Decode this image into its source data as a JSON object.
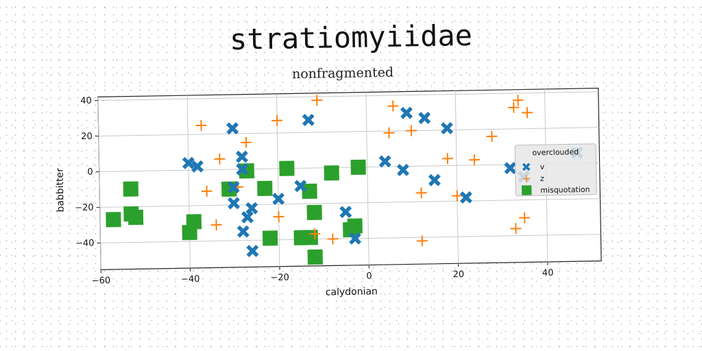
{
  "title": "stratiomyiidae",
  "subtitle": "nonfragmented",
  "chart_data": {
    "type": "scatter",
    "xlabel": "calydonian",
    "ylabel": "babbitter",
    "xlim": [
      -60,
      52
    ],
    "ylim": [
      -55,
      42
    ],
    "xticks": [
      -60,
      -40,
      -20,
      0,
      20,
      40
    ],
    "yticks": [
      -40,
      -20,
      0,
      20,
      40
    ],
    "grid": true,
    "legend": {
      "title": "overclouded",
      "position": "right"
    },
    "series": [
      {
        "name": "v",
        "marker": "x",
        "color": "#1f77b4",
        "points": [
          [
            -40,
            4
          ],
          [
            -38,
            2
          ],
          [
            -30,
            23
          ],
          [
            -28,
            7
          ],
          [
            -28,
            0
          ],
          [
            -30,
            -10
          ],
          [
            -30,
            -19
          ],
          [
            -28,
            -35
          ],
          [
            -26,
            -22
          ],
          [
            -27,
            -27
          ],
          [
            -26,
            -46
          ],
          [
            -20,
            -17
          ],
          [
            -15,
            -10
          ],
          [
            -13,
            27
          ],
          [
            -5,
            -25
          ],
          [
            -3,
            -40
          ],
          [
            4,
            3
          ],
          [
            8,
            -2
          ],
          [
            9,
            30
          ],
          [
            13,
            27
          ],
          [
            15,
            -8
          ],
          [
            18,
            21
          ],
          [
            22,
            -18
          ],
          [
            32,
            -2
          ],
          [
            35,
            -7
          ],
          [
            47,
            6
          ]
        ]
      },
      {
        "name": "z",
        "marker": "+",
        "color": "#ff7f0e",
        "points": [
          [
            -37,
            25
          ],
          [
            -36,
            -12
          ],
          [
            -33,
            6
          ],
          [
            -34,
            -31
          ],
          [
            -27,
            15
          ],
          [
            -29,
            -10
          ],
          [
            -20,
            27
          ],
          [
            -20,
            -27
          ],
          [
            -11,
            38
          ],
          [
            -12,
            -37
          ],
          [
            -8,
            -40
          ],
          [
            5,
            19
          ],
          [
            6,
            34
          ],
          [
            10,
            20
          ],
          [
            12,
            -15
          ],
          [
            12,
            -42
          ],
          [
            18,
            4
          ],
          [
            20,
            -17
          ],
          [
            24,
            3
          ],
          [
            28,
            16
          ],
          [
            33,
            32
          ],
          [
            34,
            36
          ],
          [
            36,
            29
          ],
          [
            35,
            -30
          ],
          [
            33,
            -36
          ]
        ]
      },
      {
        "name": "misquotation",
        "marker": "square",
        "color": "#2ca02c",
        "points": [
          [
            -57,
            -27
          ],
          [
            -53,
            -10
          ],
          [
            -53,
            -24
          ],
          [
            -52,
            -26
          ],
          [
            -40,
            -35
          ],
          [
            -39,
            -29
          ],
          [
            -31,
            -11
          ],
          [
            -27,
            -1
          ],
          [
            -23,
            -11
          ],
          [
            -22,
            -39
          ],
          [
            -18,
            0
          ],
          [
            -15,
            -39
          ],
          [
            -13,
            -39
          ],
          [
            -13,
            -13
          ],
          [
            -12,
            -25
          ],
          [
            -12,
            -50
          ],
          [
            -8,
            -3
          ],
          [
            -4,
            -35
          ],
          [
            -3,
            -33
          ],
          [
            -2,
            0
          ]
        ]
      }
    ]
  }
}
